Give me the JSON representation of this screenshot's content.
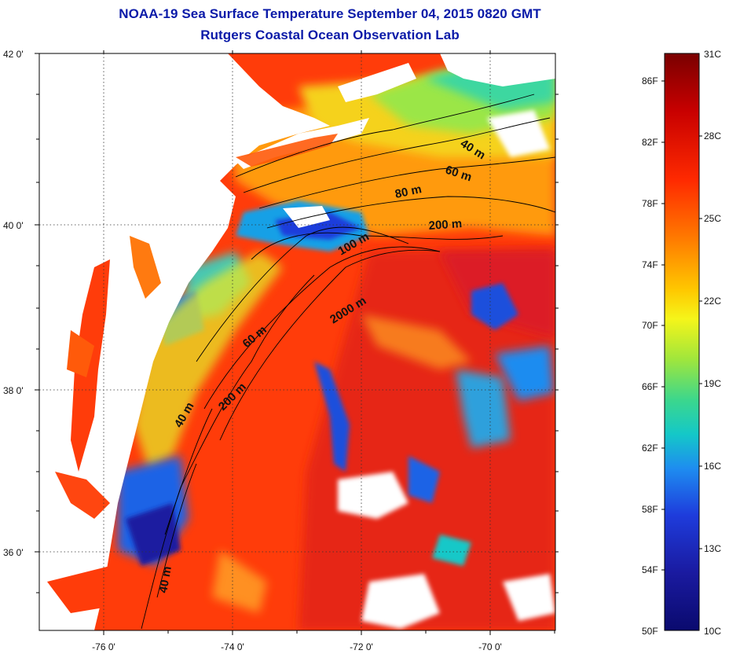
{
  "title": {
    "line1": "NOAA-19 Sea Surface Temperature September 04, 2015 0820 GMT",
    "line2": "Rutgers Coastal Ocean Observation Lab"
  },
  "map": {
    "lat_labels": [
      "42 0'",
      "40 0'",
      "38 0'",
      "36 0'"
    ],
    "lon_labels": [
      "-76 0'",
      "-74 0'",
      "-72 0'",
      "-70 0'"
    ],
    "contour_labels": [
      "40 m",
      "60 m",
      "80 m",
      "200 m",
      "100 m",
      "2000 m",
      "60 m",
      "200 m",
      "40 m",
      "40 m"
    ]
  },
  "colorbar": {
    "fahrenheit_labels": [
      "86F",
      "82F",
      "78F",
      "74F",
      "70F",
      "66F",
      "62F",
      "58F",
      "54F",
      "50F"
    ],
    "celsius_labels": [
      "31C",
      "28C",
      "25C",
      "22C",
      "19C",
      "16C",
      "13C",
      "10C"
    ],
    "colors": [
      "#7a0000",
      "#c80000",
      "#ff2a00",
      "#ff7a00",
      "#ffc800",
      "#f5f51a",
      "#a0e63c",
      "#3cd78c",
      "#14c8c8",
      "#1e8cf0",
      "#1e3cdc",
      "#1a1aa0",
      "#0a0a6e"
    ]
  },
  "colors": {
    "title": "#0a1aa8",
    "warm": "#ff3c00",
    "land": "#ffffff"
  }
}
